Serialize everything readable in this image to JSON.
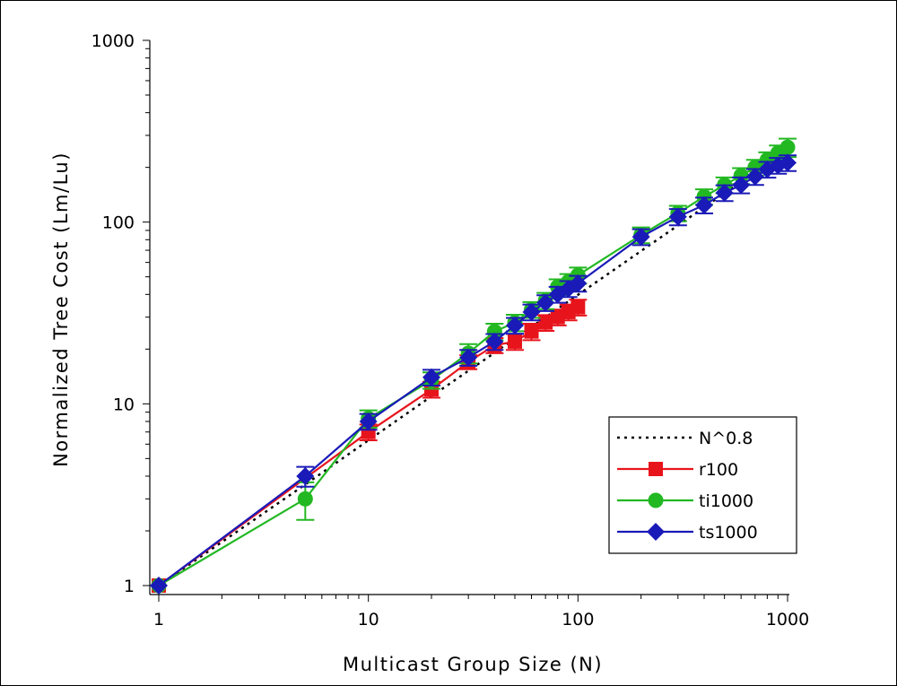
{
  "chart_data": {
    "type": "line",
    "title": "",
    "xlabel": "Multicast Group Size (N)",
    "ylabel": "Normalized Tree Cost (Lm/Lu)",
    "xscale": "log",
    "yscale": "log",
    "xlim": [
      1,
      1000
    ],
    "ylim": [
      1,
      1000
    ],
    "xticks": [
      1,
      10,
      100,
      1000
    ],
    "xtick_labels": [
      "1",
      "10",
      "100",
      "1000"
    ],
    "yticks": [
      1,
      10,
      100,
      1000
    ],
    "ytick_labels": [
      "1",
      "10",
      "100",
      "1000"
    ],
    "grid": false,
    "legend_position": "bottom-right",
    "series": [
      {
        "name": "N^0.8",
        "style": "dotted",
        "color": "#000000",
        "marker": "none",
        "x": [
          1,
          5,
          10,
          20,
          30,
          40,
          50,
          60,
          70,
          80,
          90,
          100,
          200,
          300,
          400,
          500,
          600,
          700,
          800,
          900,
          1000
        ],
        "y": [
          1,
          3.6,
          6.3,
          11,
          15.2,
          19.1,
          22.9,
          26.5,
          29.9,
          33.3,
          36.6,
          39.8,
          69.3,
          95.9,
          120.7,
          144.3,
          166.9,
          188.7,
          209.8,
          230.4,
          251.2
        ]
      },
      {
        "name": "r100",
        "style": "solid",
        "color": "#e8141c",
        "marker": "square",
        "x": [
          1,
          10,
          20,
          30,
          40,
          50,
          60,
          70,
          80,
          90,
          100
        ],
        "y": [
          1,
          7,
          12,
          17,
          21,
          22,
          25,
          28,
          30,
          32,
          34
        ],
        "err": [
          0,
          0.7,
          1.2,
          1.5,
          2,
          2.2,
          2.6,
          2.8,
          3,
          3.2,
          3.4
        ]
      },
      {
        "name": "ti1000",
        "style": "solid",
        "color": "#22b822",
        "marker": "circle",
        "x": [
          1,
          5,
          10,
          20,
          30,
          40,
          50,
          60,
          70,
          80,
          90,
          100,
          200,
          300,
          400,
          500,
          600,
          700,
          800,
          900,
          1000
        ],
        "y": [
          1,
          3,
          8.3,
          13.5,
          19,
          25,
          28,
          33,
          37,
          44,
          47,
          51,
          85,
          112,
          138,
          160,
          180,
          200,
          220,
          240,
          258
        ],
        "err": [
          0,
          0.7,
          0.9,
          1.4,
          2.3,
          2.6,
          2.9,
          3.3,
          3.8,
          4.4,
          4.8,
          5.2,
          8.5,
          11,
          13.5,
          16,
          18,
          20,
          22,
          24,
          30
        ]
      },
      {
        "name": "ts1000",
        "style": "solid",
        "color": "#1a1ab8",
        "marker": "diamond",
        "x": [
          1,
          5,
          10,
          20,
          30,
          40,
          50,
          60,
          70,
          80,
          90,
          100,
          200,
          300,
          400,
          500,
          600,
          700,
          800,
          900,
          1000
        ],
        "y": [
          1,
          4,
          8,
          14,
          18,
          22,
          27,
          32,
          36,
          40,
          43,
          46,
          83,
          107,
          124,
          145,
          160,
          178,
          195,
          205,
          212
        ],
        "err": [
          0,
          0.5,
          0.8,
          1.4,
          1.8,
          2.2,
          2.7,
          3.2,
          3.6,
          4,
          4.3,
          4.6,
          8.3,
          11,
          12.4,
          14.5,
          16,
          17.8,
          19.5,
          20.5,
          21
        ]
      }
    ]
  }
}
